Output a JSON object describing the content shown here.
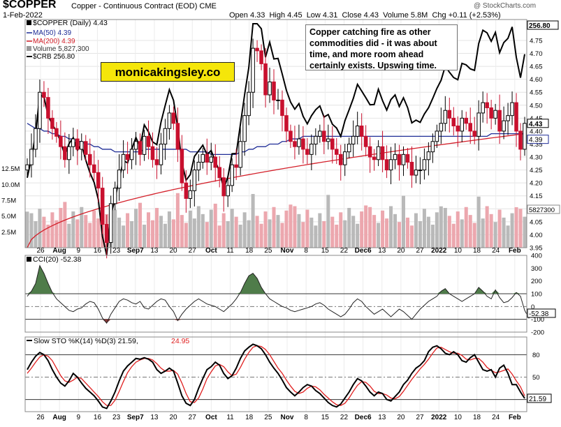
{
  "header": {
    "symbol": "$COPPER",
    "description": "Copper - Continuous Contract (EOD)",
    "exchange": "CME",
    "source": "@ StockCharts.com",
    "date": "1-Feb-2022",
    "quote": "Open 4.33  High 4.45  Low 4.31  Close 4.43  Volume 5.8M  Chg +0.11 (+2.53%)"
  },
  "legend": {
    "main": "$COPPER (Daily) 4.43",
    "ma50": "MA(50) 4.39",
    "ma200": "MA(200) 4.39",
    "volume": "Volume 5,827,300",
    "crb": "$CRB 256.80"
  },
  "annotation": "Copper catching fire as other commodities did - it was about time, and more room ahead certainly exists. Upswing time.",
  "brand": "monicakingsley.co",
  "colors": {
    "up": "#000000",
    "down": "#c8102e",
    "ma50": "#1e2c96",
    "ma200": "#d4202a",
    "crb": "#000000",
    "vol_up": "#b9b9b9",
    "vol_down": "#eca7ae",
    "cci_pos": "#4f7c4a",
    "cci_neg": "#8c3a3a",
    "sto_k": "#000000",
    "sto_d": "#e02020"
  },
  "chart_data": [
    {
      "type": "candlestick",
      "title": "$COPPER (Daily) 4.43",
      "y_ticks": [
        "4.75",
        "4.70",
        "4.65",
        "4.60",
        "4.55",
        "4.50",
        "4.45",
        "4.40",
        "4.35",
        "4.30",
        "4.25",
        "4.20",
        "4.15",
        "4.10",
        "4.05",
        "4.00",
        "3.95"
      ],
      "ylim": [
        3.95,
        4.82
      ],
      "x_labels": [
        "26",
        "Aug",
        "9",
        "16",
        "23",
        "Sep7",
        "13",
        "20",
        "27",
        "Oct",
        "11",
        "18",
        "25",
        "Nov",
        "8",
        "15",
        "22",
        "Dec6",
        "13",
        "20",
        "27",
        "2022",
        "10",
        "18",
        "24",
        "Feb"
      ],
      "last_close_label": "4.43",
      "ma_label": "4.39",
      "crb_last_label": "256.80",
      "closes": [
        4.27,
        4.33,
        4.41,
        4.55,
        4.53,
        4.45,
        4.41,
        4.38,
        4.34,
        4.29,
        4.34,
        4.37,
        4.33,
        4.36,
        4.31,
        4.27,
        4.24,
        4.18,
        4.04,
        3.97,
        4.12,
        4.18,
        4.25,
        4.31,
        4.29,
        4.33,
        4.36,
        4.31,
        4.38,
        4.34,
        4.29,
        4.27,
        4.35,
        4.41,
        4.47,
        4.43,
        4.33,
        4.2,
        4.14,
        4.17,
        4.25,
        4.28,
        4.31,
        4.28,
        4.3,
        4.26,
        4.22,
        4.15,
        4.19,
        4.27,
        4.26,
        4.36,
        4.46,
        4.55,
        4.72,
        4.71,
        4.66,
        4.54,
        4.59,
        4.52,
        4.52,
        4.46,
        4.4,
        4.36,
        4.34,
        4.37,
        4.33,
        4.31,
        4.35,
        4.38,
        4.4,
        4.36,
        4.37,
        4.33,
        4.31,
        4.27,
        4.32,
        4.35,
        4.38,
        4.42,
        4.38,
        4.34,
        4.3,
        4.29,
        4.34,
        4.29,
        4.25,
        4.29,
        4.31,
        4.27,
        4.31,
        4.28,
        4.23,
        4.25,
        4.25,
        4.29,
        4.32,
        4.36,
        4.4,
        4.43,
        4.48,
        4.45,
        4.42,
        4.4,
        4.45,
        4.43,
        4.4,
        4.38,
        4.47,
        4.51,
        4.49,
        4.45,
        4.48,
        4.4,
        4.44,
        4.46,
        4.51,
        4.4,
        4.33,
        4.43
      ],
      "ma50": [
        4.43,
        4.42,
        4.41,
        4.41,
        4.4,
        4.4,
        4.39,
        4.39,
        4.38,
        4.38,
        4.37,
        4.37,
        4.36,
        4.36,
        4.35,
        4.35,
        4.34,
        4.34,
        4.33,
        4.33,
        4.33,
        4.32,
        4.32,
        4.32,
        4.32,
        4.32,
        4.32,
        4.32,
        4.33,
        4.33,
        4.33,
        4.33,
        4.33,
        4.33,
        4.33,
        4.33,
        4.33,
        4.33,
        4.33,
        4.32,
        4.32,
        4.32,
        4.32,
        4.32,
        4.31,
        4.31,
        4.31,
        4.31,
        4.31,
        4.31,
        4.31,
        4.32,
        4.32,
        4.33,
        4.33,
        4.34,
        4.34,
        4.34,
        4.35,
        4.35,
        4.35,
        4.36,
        4.36,
        4.37,
        4.37,
        4.37,
        4.38,
        4.38,
        4.38,
        4.38,
        4.38,
        4.38,
        4.38,
        4.38,
        4.38,
        4.38,
        4.38,
        4.38,
        4.38,
        4.38,
        4.38,
        4.38,
        4.38,
        4.38,
        4.38,
        4.38,
        4.38,
        4.38,
        4.38,
        4.38,
        4.38,
        4.38,
        4.38,
        4.38,
        4.38,
        4.38,
        4.38,
        4.38,
        4.38,
        4.38,
        4.38,
        4.38,
        4.38,
        4.38,
        4.38,
        4.38,
        4.38,
        4.38,
        4.38,
        4.38,
        4.38,
        4.39,
        4.39,
        4.39,
        4.39,
        4.39,
        4.39,
        4.39,
        4.39,
        4.39
      ],
      "ma200_start": 3.95,
      "ma200_end": 4.39
    },
    {
      "type": "line",
      "title": "$CRB",
      "series_last": "256.80"
    },
    {
      "type": "bar",
      "title": "Volume 5,827,300",
      "y_ticks": [
        "12.5M",
        "10.0M",
        "7.5M",
        "5.0M",
        "2.5M"
      ],
      "last_label": "5827300"
    },
    {
      "type": "area",
      "title": "CCI(20) -52.38",
      "y_ticks": [
        "400",
        "300",
        "200",
        "100",
        "0",
        "-100",
        "-200"
      ],
      "ylim": [
        -200,
        400
      ],
      "last_label": "-52.38",
      "values": [
        80,
        120,
        180,
        320,
        260,
        180,
        110,
        60,
        30,
        0,
        -30,
        -40,
        -20,
        -10,
        20,
        40,
        30,
        -20,
        -90,
        -130,
        -60,
        -10,
        40,
        60,
        50,
        30,
        20,
        40,
        -10,
        -20,
        10,
        40,
        60,
        50,
        0,
        -40,
        -110,
        -60,
        -20,
        10,
        40,
        60,
        40,
        20,
        10,
        0,
        -20,
        -40,
        -10,
        20,
        60,
        110,
        180,
        240,
        260,
        220,
        150,
        100,
        60,
        40,
        20,
        0,
        -10,
        -30,
        -40,
        -30,
        -20,
        -10,
        0,
        20,
        30,
        10,
        -20,
        -40,
        -60,
        -80,
        -60,
        -20,
        30,
        60,
        40,
        0,
        -30,
        -60,
        -40,
        -20,
        -50,
        -80,
        -50,
        -20,
        -40,
        -70,
        -100,
        -60,
        -20,
        10,
        40,
        60,
        80,
        120,
        140,
        100,
        80,
        60,
        40,
        60,
        80,
        100,
        150,
        120,
        80,
        60,
        130,
        70,
        30,
        40,
        70,
        110,
        80,
        -30,
        -90,
        -52.38
      ]
    },
    {
      "type": "line",
      "title": "Slow STO %K(14) %D(3) 21.59, 24.95",
      "title_k": "Slow STO %K(14) %D(3) 21.59,",
      "title_d": "24.95",
      "y_ticks": [
        "80",
        "50",
        "20"
      ],
      "ylim": [
        0,
        100
      ],
      "last_label": "21.59",
      "series": [
        {
          "name": "%K",
          "values": [
            60,
            70,
            78,
            83,
            80,
            72,
            60,
            50,
            42,
            38,
            45,
            55,
            50,
            42,
            35,
            30,
            25,
            18,
            10,
            8,
            18,
            30,
            45,
            58,
            65,
            70,
            75,
            74,
            76,
            74,
            70,
            60,
            55,
            58,
            62,
            58,
            42,
            25,
            15,
            12,
            20,
            35,
            48,
            60,
            64,
            70,
            66,
            55,
            48,
            52,
            62,
            75,
            85,
            90,
            94,
            92,
            88,
            80,
            70,
            62,
            55,
            46,
            36,
            30,
            25,
            30,
            36,
            40,
            38,
            32,
            28,
            22,
            16,
            12,
            10,
            14,
            22,
            30,
            40,
            48,
            45,
            38,
            30,
            25,
            30,
            28,
            20,
            18,
            24,
            30,
            40,
            46,
            55,
            62,
            66,
            72,
            84,
            90,
            92,
            88,
            82,
            80,
            84,
            80,
            72,
            70,
            76,
            80,
            70,
            60,
            58,
            60,
            50,
            62,
            66,
            55,
            40,
            40,
            30,
            21.59
          ]
        },
        {
          "name": "%D",
          "values": [
            55,
            62,
            70,
            77,
            80,
            78,
            72,
            62,
            52,
            45,
            43,
            46,
            50,
            48,
            42,
            36,
            30,
            24,
            17,
            12,
            12,
            19,
            31,
            44,
            56,
            64,
            70,
            73,
            75,
            75,
            73,
            68,
            62,
            58,
            58,
            59,
            54,
            42,
            28,
            17,
            16,
            22,
            34,
            48,
            57,
            65,
            67,
            64,
            57,
            52,
            54,
            63,
            74,
            83,
            90,
            92,
            91,
            87,
            80,
            71,
            62,
            55,
            46,
            38,
            31,
            28,
            30,
            35,
            38,
            37,
            33,
            27,
            22,
            17,
            13,
            12,
            15,
            22,
            31,
            39,
            44,
            43,
            38,
            31,
            28,
            28,
            26,
            22,
            21,
            24,
            31,
            39,
            47,
            54,
            61,
            67,
            74,
            82,
            89,
            90,
            87,
            84,
            82,
            82,
            79,
            74,
            73,
            75,
            75,
            70,
            63,
            59,
            56,
            57,
            59,
            61,
            54,
            45,
            37,
            24.95
          ]
        }
      ]
    }
  ]
}
